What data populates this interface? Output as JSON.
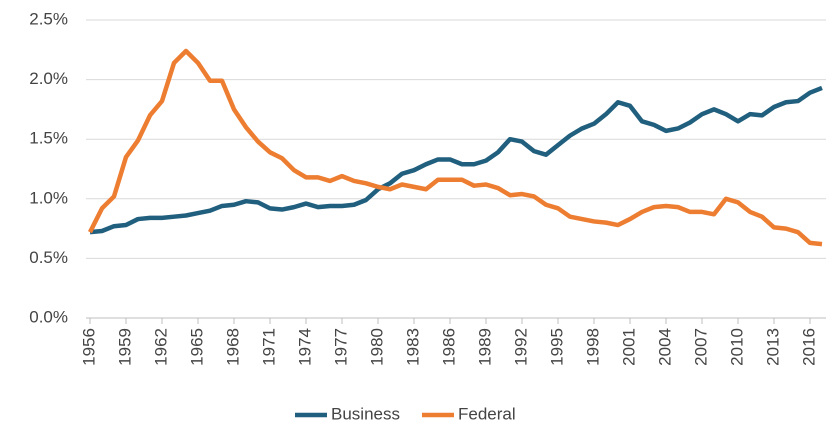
{
  "chart_data": {
    "type": "line",
    "x": [
      1956,
      1957,
      1958,
      1959,
      1960,
      1961,
      1962,
      1963,
      1964,
      1965,
      1966,
      1967,
      1968,
      1969,
      1970,
      1971,
      1972,
      1973,
      1974,
      1975,
      1976,
      1977,
      1978,
      1979,
      1980,
      1981,
      1982,
      1983,
      1984,
      1985,
      1986,
      1987,
      1988,
      1989,
      1990,
      1991,
      1992,
      1993,
      1994,
      1995,
      1996,
      1997,
      1998,
      1999,
      2000,
      2001,
      2002,
      2003,
      2004,
      2005,
      2006,
      2007,
      2008,
      2009,
      2010,
      2011,
      2012,
      2013,
      2014,
      2015,
      2016,
      2017
    ],
    "series": [
      {
        "name": "Business",
        "color": "#215f7e",
        "values": [
          0.72,
          0.73,
          0.77,
          0.78,
          0.83,
          0.84,
          0.84,
          0.85,
          0.86,
          0.88,
          0.9,
          0.94,
          0.95,
          0.98,
          0.97,
          0.92,
          0.91,
          0.93,
          0.96,
          0.93,
          0.94,
          0.94,
          0.95,
          0.99,
          1.08,
          1.13,
          1.21,
          1.24,
          1.29,
          1.33,
          1.33,
          1.29,
          1.29,
          1.32,
          1.39,
          1.5,
          1.48,
          1.4,
          1.37,
          1.45,
          1.53,
          1.59,
          1.63,
          1.71,
          1.81,
          1.78,
          1.65,
          1.62,
          1.57,
          1.59,
          1.64,
          1.71,
          1.75,
          1.71,
          1.65,
          1.71,
          1.7,
          1.77,
          1.81,
          1.82,
          1.89,
          1.93
        ]
      },
      {
        "name": "Federal",
        "color": "#ed7d31",
        "values": [
          0.72,
          0.92,
          1.02,
          1.35,
          1.49,
          1.7,
          1.82,
          2.14,
          2.24,
          2.14,
          1.99,
          1.99,
          1.75,
          1.6,
          1.48,
          1.39,
          1.34,
          1.24,
          1.18,
          1.18,
          1.15,
          1.19,
          1.15,
          1.13,
          1.1,
          1.08,
          1.12,
          1.1,
          1.08,
          1.16,
          1.16,
          1.16,
          1.11,
          1.12,
          1.09,
          1.03,
          1.04,
          1.02,
          0.95,
          0.92,
          0.85,
          0.83,
          0.81,
          0.8,
          0.78,
          0.83,
          0.89,
          0.93,
          0.94,
          0.93,
          0.89,
          0.89,
          0.87,
          1.0,
          0.97,
          0.89,
          0.85,
          0.76,
          0.75,
          0.72,
          0.63,
          0.62
        ]
      }
    ],
    "xlim": [
      1956,
      2017
    ],
    "xticks": [
      1956,
      1959,
      1962,
      1965,
      1968,
      1971,
      1974,
      1977,
      1980,
      1983,
      1986,
      1989,
      1992,
      1995,
      1998,
      2001,
      2004,
      2007,
      2010,
      2013,
      2016
    ],
    "ylim": [
      0,
      2.5
    ],
    "yticks": [
      {
        "value": 0,
        "label": "0.0%"
      },
      {
        "value": 0.5,
        "label": "0.5%"
      },
      {
        "value": 1,
        "label": "1.0%"
      },
      {
        "value": 1.5,
        "label": "1.5%"
      },
      {
        "value": 2,
        "label": "2.0%"
      },
      {
        "value": 2.5,
        "label": "2.5%"
      }
    ],
    "grid": true,
    "legend": "bottom"
  }
}
